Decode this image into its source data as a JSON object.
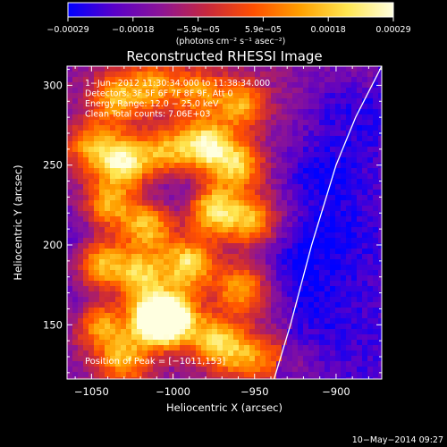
{
  "chart_data": {
    "type": "heatmap",
    "title": "Reconstructed RHESSI Image",
    "xlabel": "Heliocentric X (arcsec)",
    "ylabel": "Heliocentric Y (arcsec)",
    "xlim": [
      -1065,
      -872
    ],
    "ylim": [
      116,
      312
    ],
    "x_ticks": [
      -1050,
      -1000,
      -950,
      -900
    ],
    "x_tick_labels": [
      "−1050",
      "−1000",
      "−950",
      "−900"
    ],
    "y_ticks": [
      150,
      200,
      250,
      300
    ],
    "y_tick_labels": [
      "150",
      "200",
      "250",
      "300"
    ],
    "colorbar": {
      "min": -0.00029,
      "max": 0.00029,
      "tick_labels": [
        "−0.00029",
        "−0.00018",
        "−5.9e−05",
        "5.9e−05",
        "0.00018",
        "0.00029"
      ],
      "unit": "(photons cm⁻² s⁻¹ asec⁻²)",
      "colormap": [
        "#0000ff",
        "#5a00c8",
        "#8c1496",
        "#c8283c",
        "#ff5000",
        "#ffa000",
        "#ffe650",
        "#ffffe0"
      ]
    },
    "annotations": [
      "1−Jun−2012 11:30:34.000 to 11:38:34.000",
      "Detectors: 3F 5F 6F 7F 8F 9F, Att 0",
      "Energy Range: 12.0 − 25.0 keV",
      "Clean    Total counts: 7.06E+03"
    ],
    "peak_label": "Position of Peak = [−1011,153]",
    "peak": [
      -1011,
      153
    ],
    "limb_curve": [
      [
        -938,
        116
      ],
      [
        -928,
        150
      ],
      [
        -915,
        200
      ],
      [
        -900,
        250
      ],
      [
        -888,
        280
      ],
      [
        -872,
        312
      ]
    ],
    "limb_color": "#ffffff",
    "hot_regions": [
      {
        "x": -1035,
        "y": 292,
        "v": 0.55
      },
      {
        "x": -1012,
        "y": 300,
        "v": 0.5
      },
      {
        "x": -985,
        "y": 296,
        "v": 0.45
      },
      {
        "x": -958,
        "y": 288,
        "v": 0.55
      },
      {
        "x": -1050,
        "y": 262,
        "v": 0.5
      },
      {
        "x": -1030,
        "y": 252,
        "v": 0.75
      },
      {
        "x": -1005,
        "y": 258,
        "v": 0.55
      },
      {
        "x": -980,
        "y": 262,
        "v": 0.8
      },
      {
        "x": -960,
        "y": 250,
        "v": 0.6
      },
      {
        "x": -975,
        "y": 222,
        "v": 0.7
      },
      {
        "x": -1040,
        "y": 225,
        "v": 0.55
      },
      {
        "x": -1015,
        "y": 212,
        "v": 0.6
      },
      {
        "x": -952,
        "y": 215,
        "v": 0.55
      },
      {
        "x": -1045,
        "y": 188,
        "v": 0.65
      },
      {
        "x": -1020,
        "y": 182,
        "v": 0.6
      },
      {
        "x": -990,
        "y": 188,
        "v": 0.7
      },
      {
        "x": -958,
        "y": 172,
        "v": 0.55
      },
      {
        "x": -1000,
        "y": 155,
        "v": 0.75
      },
      {
        "x": -1011,
        "y": 153,
        "v": 1.0
      },
      {
        "x": -1045,
        "y": 150,
        "v": 0.55
      },
      {
        "x": -975,
        "y": 140,
        "v": 0.6
      },
      {
        "x": -1030,
        "y": 128,
        "v": 0.55
      },
      {
        "x": -955,
        "y": 130,
        "v": 0.5
      },
      {
        "x": -925,
        "y": 125,
        "v": 0.45
      }
    ],
    "cold_regions": [
      {
        "x": -910,
        "y": 245,
        "v": 0.75
      },
      {
        "x": -900,
        "y": 205,
        "v": 0.7
      },
      {
        "x": -910,
        "y": 160,
        "v": 0.6
      },
      {
        "x": -925,
        "y": 190,
        "v": 0.55
      },
      {
        "x": -895,
        "y": 285,
        "v": 0.6
      },
      {
        "x": -1060,
        "y": 205,
        "v": 0.45
      },
      {
        "x": -1000,
        "y": 235,
        "v": 0.35
      },
      {
        "x": -1055,
        "y": 165,
        "v": 0.35
      }
    ]
  },
  "footer": {
    "timestamp": "10−May−2014 09:27"
  }
}
